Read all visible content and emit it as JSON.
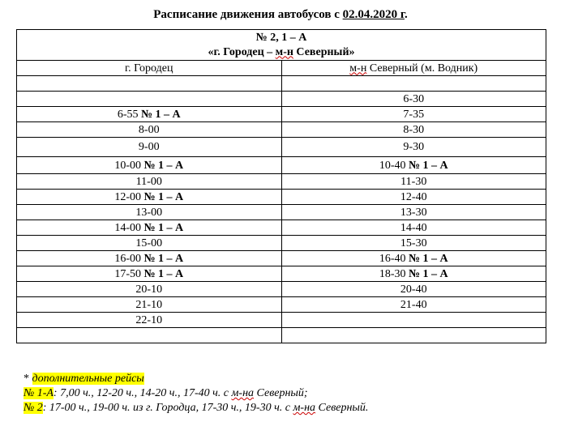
{
  "title": {
    "text": "Расписание движения автобусов с ",
    "date": "02.04.2020 г",
    "end": "."
  },
  "route": {
    "number": "№ 2, 1 – А",
    "name_start": "«г. Городец – ",
    "name_spell": "м-н",
    "name_end": " Северный»"
  },
  "columns": {
    "left": "г. Городец",
    "right_spell": "м-н",
    "right_rest": " Северный (м. Водник)"
  },
  "rows": [
    {
      "l": "",
      "lt": "",
      "r": "",
      "rt": ""
    },
    {
      "l": "",
      "lt": "",
      "r": "6-30",
      "rt": ""
    },
    {
      "l": "6-55 ",
      "lt": "№ 1 – А",
      "r": "7-35",
      "rt": ""
    },
    {
      "l": "8-00",
      "lt": "",
      "r": "8-30",
      "rt": ""
    },
    {
      "l": "9-00",
      "lt": "",
      "r": "9-30",
      "rt": ""
    },
    {
      "l": "10-00 ",
      "lt": "№ 1 – А",
      "r": "10-40 ",
      "rt": "№ 1 – А"
    },
    {
      "l": "11-00",
      "lt": "",
      "r": "11-30",
      "rt": ""
    },
    {
      "l": "12-00 ",
      "lt": "№ 1 – А",
      "r": "12-40",
      "rt": ""
    },
    {
      "l": "13-00",
      "lt": "",
      "r": "13-30",
      "rt": ""
    },
    {
      "l": "14-00 ",
      "lt": "№ 1 – А",
      "r": "14-40",
      "rt": ""
    },
    {
      "l": "15-00",
      "lt": "",
      "r": "15-30",
      "rt": ""
    },
    {
      "l": "16-00 ",
      "lt": "№ 1 – А",
      "r": "16-40 ",
      "rt": "№ 1 – А"
    },
    {
      "l": "17-50 ",
      "lt": "№ 1 – А",
      "r": "18-30 ",
      "rt": "№ 1 – А"
    },
    {
      "l": "20-10",
      "lt": "",
      "r": "20-40",
      "rt": ""
    },
    {
      "l": "21-10",
      "lt": "",
      "r": "21-40",
      "rt": ""
    },
    {
      "l": "22-10",
      "lt": "",
      "r": "",
      "rt": ""
    },
    {
      "l": "",
      "lt": "",
      "r": "",
      "rt": ""
    }
  ],
  "notes": {
    "star": "* ",
    "extra": "дополнительные рейсы",
    "line1_label": "№ 1-А",
    "line1_a": ": 7,00 ч., 12-20 ч., 14-20 ч., 17-40 ч. с ",
    "line1_spell": "м-на",
    "line1_b": " Северный;",
    "line2_label": "№ 2",
    "line2_a": ": 17-00 ч., 19-00 ч. из г. Городца, 17-30 ч., 19-30 ч. с ",
    "line2_spell": "м-на",
    "line2_b": " Северный."
  },
  "colors": {
    "highlight": "#ffff00"
  }
}
